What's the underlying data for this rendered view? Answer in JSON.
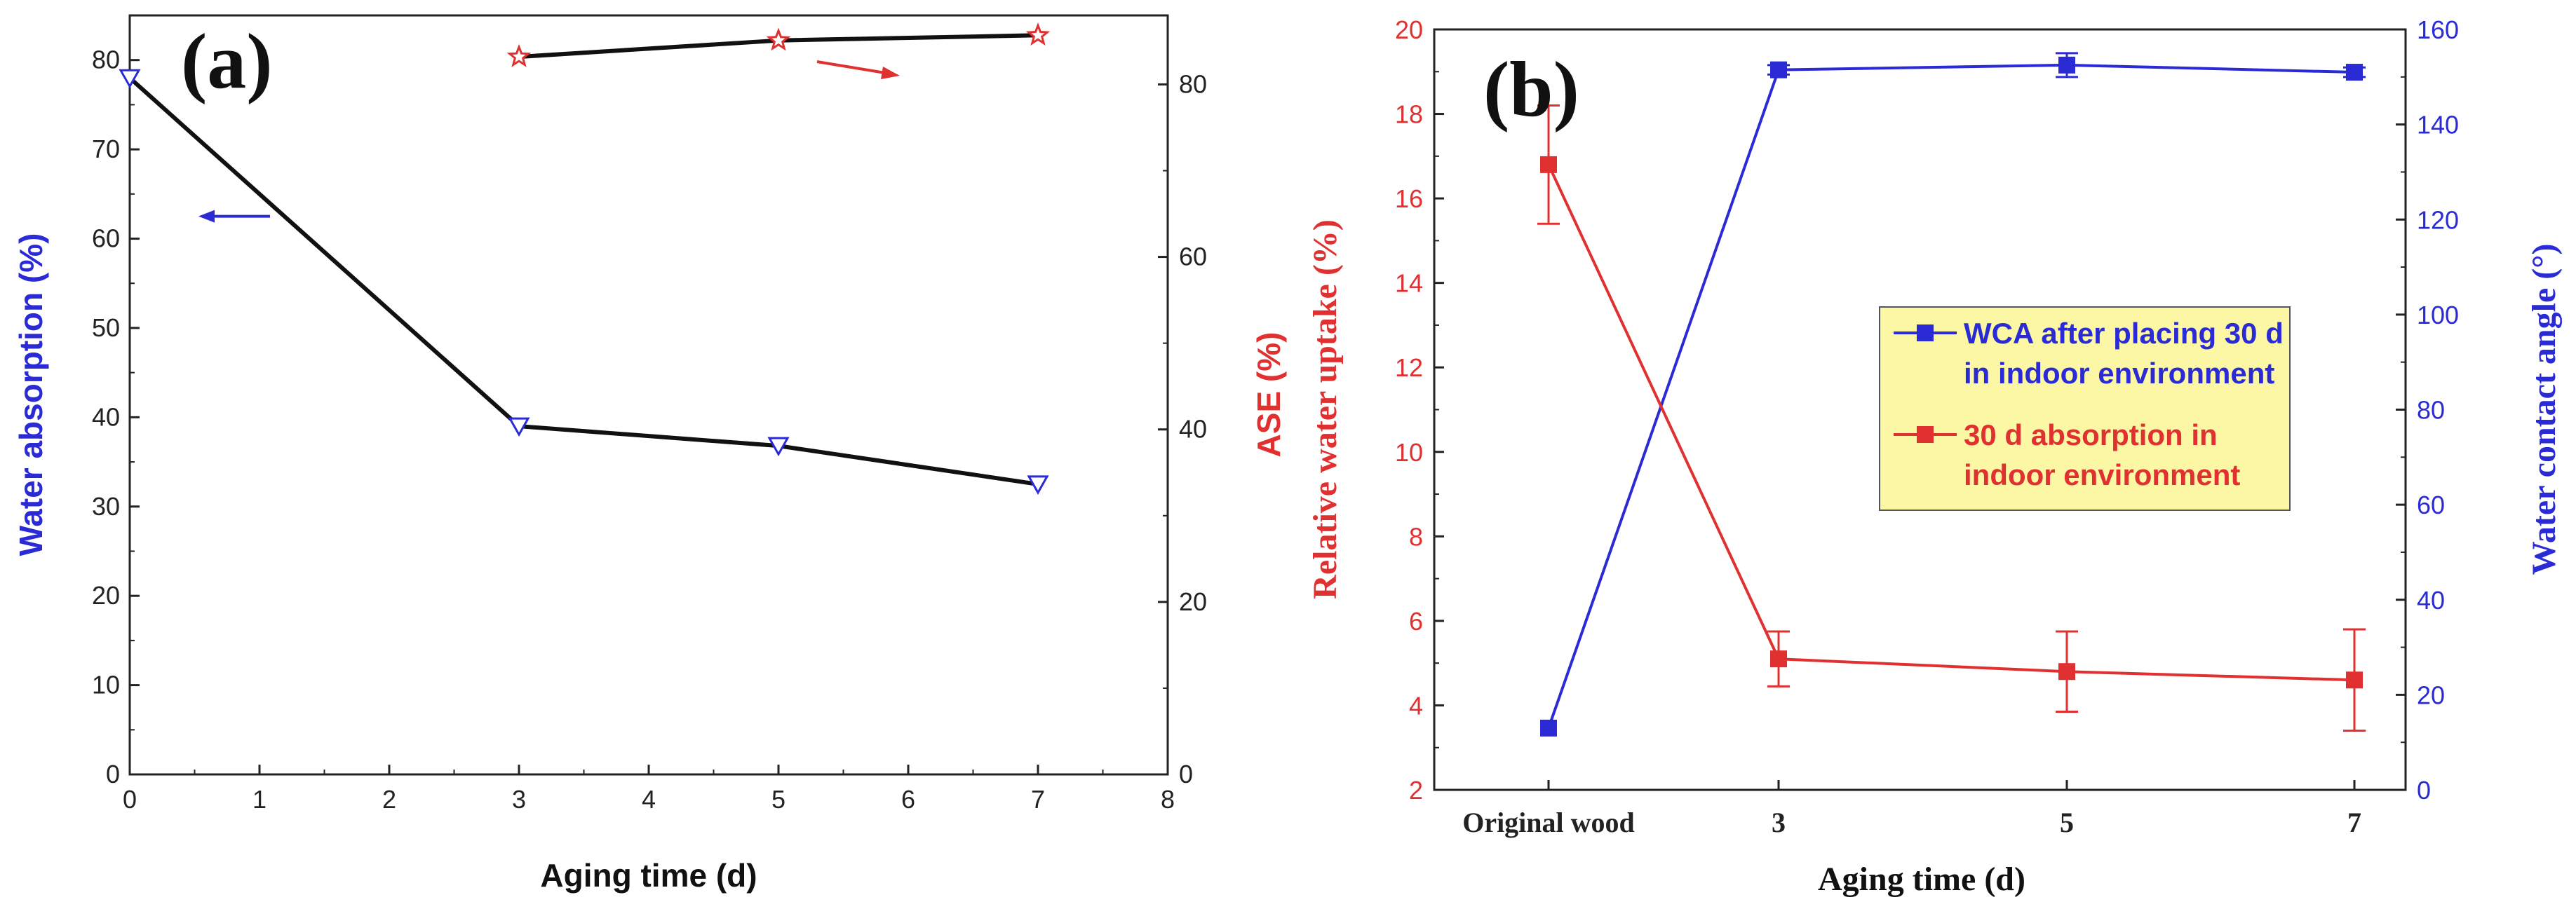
{
  "colors": {
    "blue": "#2b2bd6",
    "red": "#e03030",
    "black": "#111111",
    "legend_bg": "#fbf7a4"
  },
  "chart_data": [
    {
      "type": "line",
      "panel_label": "(a)",
      "xlabel": "Aging time (d)",
      "ylabel_left": "Water absorption (%)",
      "ylabel_right": "ASE (%)",
      "xlim": [
        0,
        8
      ],
      "ylim_left": [
        0,
        85
      ],
      "ylim_right": [
        0,
        88
      ],
      "x_ticks": [
        0,
        1,
        2,
        3,
        4,
        5,
        6,
        7,
        8
      ],
      "y_ticks_left": [
        0,
        10,
        20,
        30,
        40,
        50,
        60,
        70,
        80
      ],
      "y_ticks_right": [
        0,
        20,
        40,
        60,
        80
      ],
      "grid": false,
      "series": [
        {
          "axis": "left",
          "marker": "triangle-down",
          "x": [
            0,
            3,
            5,
            7
          ],
          "y": [
            78,
            39,
            36.8,
            32.5
          ]
        },
        {
          "axis": "right",
          "marker": "star",
          "x": [
            3,
            5,
            7
          ],
          "y": [
            83.2,
            85.1,
            85.7
          ]
        }
      ],
      "annotations": [
        {
          "type": "arrow",
          "direction": "left",
          "color": "blue"
        },
        {
          "type": "arrow",
          "direction": "right",
          "color": "red"
        }
      ]
    },
    {
      "type": "line",
      "panel_label": "(b)",
      "xlabel": "Aging time (d)",
      "ylabel_left": "Relative water uptake (%)",
      "ylabel_right": "Water contact angle (°)",
      "categories": [
        "Original wood",
        "3",
        "5",
        "7"
      ],
      "ylim_left": [
        2,
        20
      ],
      "ylim_right": [
        0,
        160
      ],
      "y_ticks_left": [
        2,
        4,
        6,
        8,
        10,
        12,
        14,
        16,
        18,
        20
      ],
      "y_ticks_right": [
        0,
        20,
        40,
        60,
        80,
        100,
        120,
        140,
        160
      ],
      "grid": false,
      "legend_position": "center-right",
      "series": [
        {
          "name": "WCA after placing 30 d in indoor environment",
          "legend_lines": [
            "WCA after placing 30 d",
            "in indoor environment"
          ],
          "axis": "right",
          "color": "blue",
          "values": [
            13,
            151.5,
            152.5,
            151
          ],
          "errors": [
            0,
            1,
            2.5,
            1
          ]
        },
        {
          "name": "30 d absorption in indoor environment",
          "legend_lines": [
            "30 d absorption in",
            "indoor environment"
          ],
          "axis": "left",
          "color": "red",
          "values": [
            16.8,
            5.1,
            4.8,
            4.6
          ],
          "errors": [
            1.4,
            0.65,
            0.95,
            1.2
          ]
        }
      ]
    }
  ]
}
